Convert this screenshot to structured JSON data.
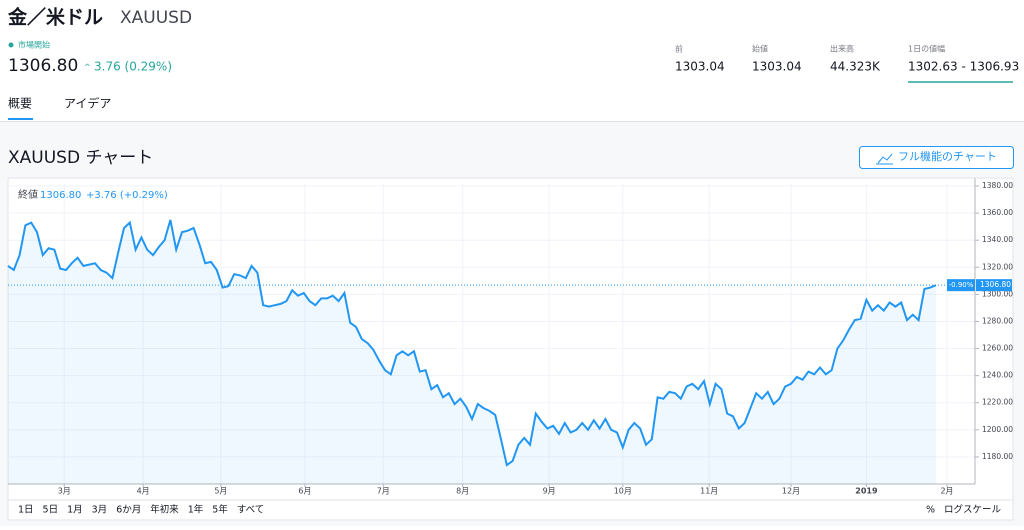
{
  "header": {
    "title": "金／米ドル",
    "symbol": "XAUUSD",
    "status": "市場開始",
    "price": "1306.80",
    "change": "3.76 (0.29%)",
    "stats": [
      {
        "label": "前",
        "value": "1303.04"
      },
      {
        "label": "始値",
        "value": "1303.04"
      },
      {
        "label": "出来高",
        "value": "44.323K"
      },
      {
        "label": "1日の値幅",
        "value": "1302.63 - 1306.93"
      }
    ]
  },
  "tabs": [
    "概要",
    "アイデア"
  ],
  "section_title": "XAUUSD チャート",
  "button": "フル機能のチャート",
  "chart_data": {
    "type": "line",
    "color": "#2196f3",
    "grid": true,
    "legend_label": "終値",
    "last_value": {
      "value": 1306.8,
      "label": "1306.80"
    },
    "change_label": "+3.76 (+0.29%)",
    "badge": "-0.90%",
    "values": [
      1321,
      1318,
      1329,
      1351,
      1353,
      1346,
      1329,
      1334,
      1333,
      1319,
      1318,
      1323,
      1327,
      1321,
      1322,
      1323,
      1318,
      1316,
      1312,
      1331,
      1349,
      1353,
      1333,
      1342,
      1333,
      1329,
      1335,
      1340,
      1355,
      1333,
      1346,
      1347,
      1349,
      1337,
      1323,
      1324,
      1318,
      1305,
      1306,
      1315,
      1314,
      1312,
      1321,
      1316,
      1292,
      1291,
      1292,
      1293,
      1295,
      1303,
      1299,
      1301,
      1295,
      1292,
      1297,
      1297,
      1299,
      1295,
      1301,
      1279,
      1276,
      1267,
      1264,
      1259,
      1251,
      1244,
      1241,
      1255,
      1258,
      1255,
      1258,
      1243,
      1244,
      1230,
      1233,
      1224,
      1227,
      1219,
      1223,
      1217,
      1208,
      1219,
      1216,
      1214,
      1211,
      1193,
      1174,
      1177,
      1189,
      1194,
      1189,
      1212,
      1206,
      1201,
      1203,
      1197,
      1205,
      1198,
      1200,
      1205,
      1200,
      1207,
      1201,
      1208,
      1200,
      1198,
      1187,
      1200,
      1205,
      1201,
      1189,
      1193,
      1224,
      1223,
      1228,
      1227,
      1223,
      1232,
      1234,
      1230,
      1236,
      1219,
      1234,
      1230,
      1212,
      1210,
      1201,
      1205,
      1216,
      1227,
      1223,
      1228,
      1219,
      1223,
      1232,
      1234,
      1239,
      1237,
      1243,
      1241,
      1246,
      1241,
      1244,
      1260,
      1266,
      1274,
      1281,
      1282,
      1296,
      1288,
      1292,
      1288,
      1294,
      1291,
      1294,
      1281,
      1285,
      1281,
      1304,
      1305,
      1306.8
    ],
    "xlim": [
      0,
      167
    ],
    "ylim": [
      1160,
      1382
    ],
    "xticks": [
      {
        "value": 9.7,
        "label": "3月"
      },
      {
        "value": 23.3,
        "label": "4月"
      },
      {
        "value": 36.7,
        "label": "5月"
      },
      {
        "value": 51.2,
        "label": "6月"
      },
      {
        "value": 64.7,
        "label": "7月"
      },
      {
        "value": 78.4,
        "label": "8月"
      },
      {
        "value": 93.3,
        "label": "9月"
      },
      {
        "value": 106,
        "label": "10月"
      },
      {
        "value": 120.9,
        "label": "11月"
      },
      {
        "value": 135,
        "label": "12月"
      },
      {
        "value": 148,
        "label": "2019"
      },
      {
        "value": 161.9,
        "label": "2月"
      }
    ],
    "yticks": [
      {
        "value": 1180,
        "label": "1180.00"
      },
      {
        "value": 1200,
        "label": "1200.00"
      },
      {
        "value": 1220,
        "label": "1220.00"
      },
      {
        "value": 1240,
        "label": "1240.00"
      },
      {
        "value": 1260,
        "label": "1260.00"
      },
      {
        "value": 1280,
        "label": "1280.00"
      },
      {
        "value": 1300,
        "label": "1300.00"
      },
      {
        "value": 1320,
        "label": "1320.00"
      },
      {
        "value": 1340,
        "label": "1340.00"
      },
      {
        "value": 1360,
        "label": "1360.00"
      },
      {
        "value": 1380,
        "label": "1380.00"
      }
    ]
  },
  "ranges": [
    "1日",
    "5日",
    "1月",
    "3月",
    "6か月",
    "年初来",
    "1年",
    "5年",
    "すべて"
  ],
  "options": [
    "%",
    "ログスケール"
  ]
}
